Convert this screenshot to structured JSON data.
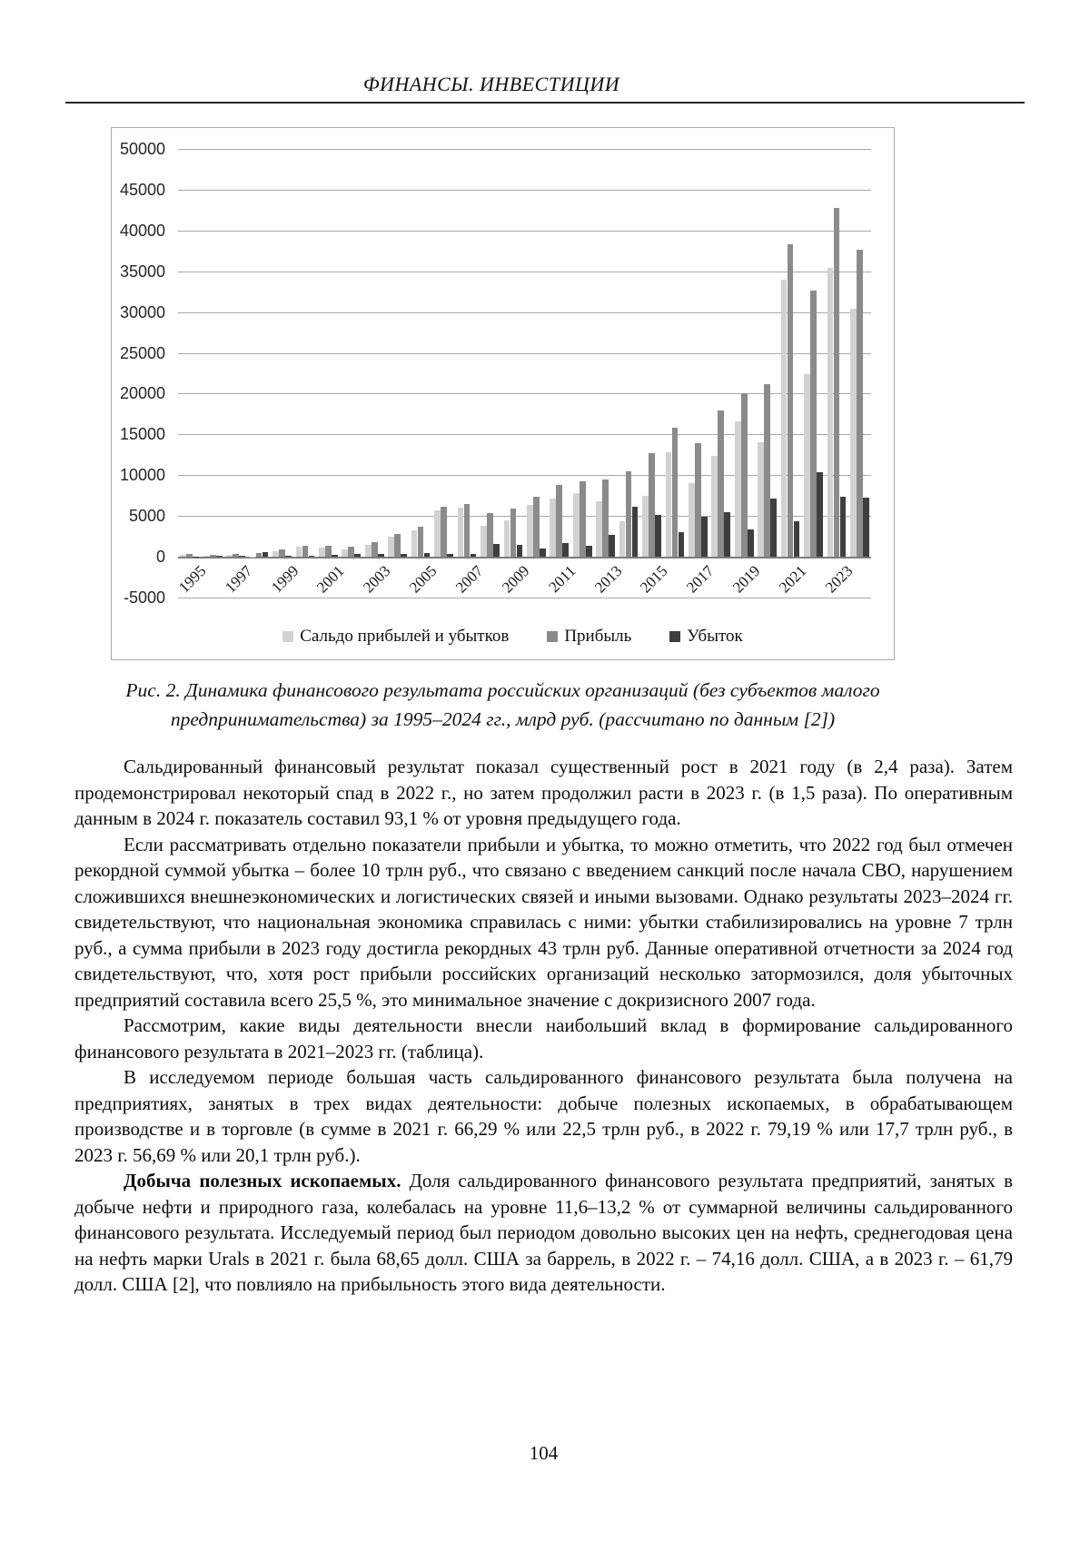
{
  "page": {
    "running_head": "ФИНАНСЫ. ИНВЕСТИЦИИ",
    "page_number": "104"
  },
  "figure": {
    "caption_line1": "Рис. 2. Динамика финансового результата российских организаций (без субъектов малого",
    "caption_line2": "предпринимательства) за 1995–2024 гг., млрд руб. (рассчитано по данным [2])"
  },
  "chart_data": {
    "type": "bar",
    "title": "",
    "unit": "млрд руб.",
    "categories": [
      1995,
      1996,
      1997,
      1998,
      1999,
      2000,
      2001,
      2002,
      2003,
      2004,
      2005,
      2006,
      2007,
      2008,
      2009,
      2010,
      2011,
      2012,
      2013,
      2014,
      2015,
      2016,
      2017,
      2018,
      2019,
      2020,
      2021,
      2022,
      2023,
      2024
    ],
    "series": [
      {
        "name": "Сальдо прибылей и убытков",
        "color": "#d2d2d2",
        "values": [
          251,
          125,
          174,
          -115,
          723,
          1191,
          1141,
          923,
          1456,
          2485,
          3226,
          5722,
          6041,
          3801,
          4432,
          6331,
          7140,
          7824,
          6854,
          4347,
          7503,
          12801,
          9037,
          12406,
          16633,
          14065,
          33940,
          22346,
          35461,
          30400
        ]
      },
      {
        "name": "Прибыль",
        "color": "#8b8b8b",
        "values": [
          301,
          225,
          309,
          423,
          886,
          1361,
          1358,
          1273,
          1816,
          2778,
          3674,
          6085,
          6412,
          5354,
          5852,
          7353,
          8794,
          9213,
          9519,
          10465,
          12654,
          15823,
          13950,
          17900,
          20000,
          21200,
          38300,
          32676,
          42800,
          37600
        ]
      },
      {
        "name": "Убыток",
        "color": "#3e3e3e",
        "values": [
          50,
          100,
          135,
          538,
          163,
          170,
          217,
          350,
          360,
          293,
          448,
          363,
          371,
          1553,
          1420,
          1022,
          1654,
          1389,
          2665,
          6118,
          5151,
          3022,
          4913,
          5494,
          3367,
          7135,
          4360,
          10330,
          7339,
          7200
        ]
      }
    ],
    "ylim": [
      -5000,
      50000
    ],
    "ytick_step": 5000,
    "yticks": [
      50000,
      45000,
      40000,
      35000,
      30000,
      25000,
      20000,
      15000,
      10000,
      5000,
      0,
      -5000
    ],
    "x_tick_labels": [
      "1995",
      "1997",
      "1999",
      "2001",
      "2003",
      "2005",
      "2007",
      "2009",
      "2011",
      "2013",
      "2015",
      "2017",
      "2019",
      "2021",
      "2023"
    ],
    "grid": true,
    "legend_position": "bottom"
  },
  "paragraphs": [
    {
      "text": "Сальдированный финансовый результат показал существенный рост в 2021 году (в 2,4 раза). Затем продемонстрировал некоторый спад в 2022 г., но затем продолжил расти в 2023 г. (в 1,5 раза). По оперативным данным в 2024 г. показатель составил 93,1 % от уровня предыдущего года."
    },
    {
      "text": "Если рассматривать отдельно показатели прибыли и убытка, то можно отметить, что 2022 год был отмечен рекордной суммой убытка – более 10 трлн руб., что связано с введением санкций после начала СВО, нарушением сложившихся внешнеэкономических и логистических связей и иными вызовами. Однако результаты 2023–2024 гг. свидетельствуют, что национальная экономика справилась с ними: убытки стабилизировались на уровне 7 трлн руб., а сумма прибыли в 2023 году достигла рекордных 43 трлн руб. Данные оперативной отчетности за 2024 год свидетельствуют, что, хотя рост прибыли российских организаций несколько затормозился, доля убыточных предприятий составила всего 25,5 %, это минимальное значение с докризисного 2007 года."
    },
    {
      "text": "Рассмотрим, какие виды деятельности внесли наибольший вклад в формирование сальдированного финансового результата в 2021–2023 гг. (таблица)."
    },
    {
      "text": "В исследуемом периоде большая часть сальдированного финансового результата была получена на предприятиях, занятых в трех видах деятельности: добыче полезных ископаемых, в обрабатывающем производстве и в торговле (в сумме в 2021 г. 66,29 % или 22,5 трлн руб., в 2022 г. 79,19 % или 17,7 трлн руб., в 2023 г. 56,69 % или 20,1 трлн руб.)."
    },
    {
      "lead": "Добыча полезных ископаемых.",
      "text": "Доля сальдированного финансового результата предприятий, занятых в добыче нефти и природного газа, колебалась на уровне 11,6–13,2 % от суммарной величины сальдированного финансового результата. Исследуемый период был периодом довольно высоких цен на нефть, среднегодовая цена на нефть марки Urals в 2021 г. была 68,65 долл. США за баррель, в 2022 г. – 74,16 долл. США, а в 2023 г. – 61,79 долл. США [2], что повлияло на прибыльность этого вида деятельности."
    }
  ]
}
